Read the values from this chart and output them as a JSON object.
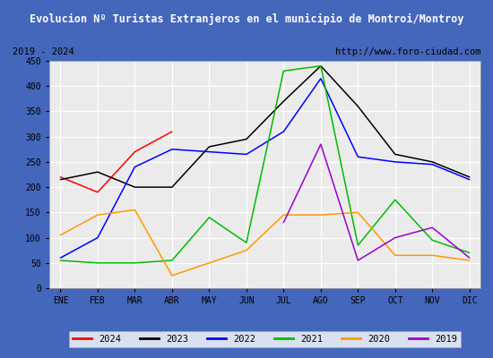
{
  "title": "Evolucion Nº Turistas Extranjeros en el municipio de Montroi/Montroy",
  "subtitle_left": "2019 - 2024",
  "subtitle_right": "http://www.foro-ciudad.com",
  "months": [
    "ENE",
    "FEB",
    "MAR",
    "ABR",
    "MAY",
    "JUN",
    "JUL",
    "AGO",
    "SEP",
    "OCT",
    "NOV",
    "DIC"
  ],
  "ylim": [
    0,
    450
  ],
  "yticks": [
    0,
    50,
    100,
    150,
    200,
    250,
    300,
    350,
    400,
    450
  ],
  "series": {
    "2024": {
      "color": "#ff0000",
      "data": [
        220,
        190,
        270,
        310,
        null,
        null,
        null,
        null,
        null,
        null,
        null,
        null
      ]
    },
    "2023": {
      "color": "#000000",
      "data": [
        215,
        230,
        200,
        200,
        280,
        295,
        370,
        440,
        360,
        265,
        250,
        220
      ]
    },
    "2022": {
      "color": "#0000ff",
      "data": [
        60,
        100,
        240,
        275,
        270,
        265,
        310,
        415,
        260,
        250,
        245,
        215
      ]
    },
    "2021": {
      "color": "#00bb00",
      "data": [
        55,
        50,
        50,
        55,
        140,
        90,
        430,
        440,
        85,
        175,
        95,
        70
      ]
    },
    "2020": {
      "color": "#ff9900",
      "data": [
        105,
        145,
        155,
        25,
        50,
        75,
        145,
        145,
        150,
        65,
        65,
        55
      ]
    },
    "2019": {
      "color": "#9900cc",
      "data": [
        null,
        null,
        null,
        null,
        null,
        null,
        130,
        285,
        55,
        100,
        120,
        60
      ]
    }
  },
  "title_bg": "#4466bb",
  "title_color": "#ffffff",
  "plot_bg": "#ebebeb",
  "grid_color": "#ffffff",
  "outer_bg": "#4466bb",
  "inner_bg": "#ffffff",
  "legend_years": [
    "2024",
    "2023",
    "2022",
    "2021",
    "2020",
    "2019"
  ]
}
